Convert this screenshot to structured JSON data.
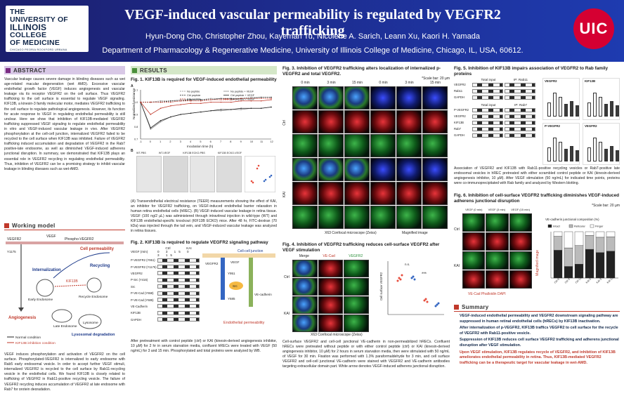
{
  "header": {
    "logo_line1": "THE",
    "logo_line2": "UNIVERSITY OF",
    "logo_line3": "ILLINOIS",
    "logo_line4": "COLLEGE",
    "logo_line5": "OF MEDICINE",
    "logo_line6": "CHICAGO  PEORIA  ROCKFORD  URBANA",
    "title": "VEGF-induced vascular permeability is regulated by VEGFR2 trafficking",
    "authors": "Hyun-Dong Cho, Christopher Zhou, Kayeman Tu, Nicolene A. Sarich, Leann Xu, Kaori H. Yamada",
    "affiliation": "Department of Pharmacology & Regenerative Medicine, University of Illinois College of Medicine, Chicago, IL, USA, 60612.",
    "right_logo": "UIC"
  },
  "abstract": {
    "heading": "ABSTRACT",
    "text": "Vascular leakage causes severe damage in blinding diseases such as wet age-related macular degeneration (wet AMD). Excessive vascular endothelial growth factor (VEGF) induces angiogenesis and vascular leakage via its receptor VEGFR2 on the cell surface. Thus VEGFR2 trafficking to the cell surface is essential to regulate VEGF signaling. KIF13B, a kinesin-3 family molecular motor, mediates VEGFR2 trafficking to the cell surface to regulate pathological angiogenesis. However, its function for acute response to VEGF in regulating endothelial permeability is still unclear. Here we show that inhibition of KIF13B-mediated VEGFR2 trafficking suppressed VEGF signaling to regulate endothelial permeability in vitro and VEGF-induced vascular leakage in vivo. After VEGFR2 phosphorylation at the cell-cell junction, internalized VEGFR2 failed to be recycled to the cell surface when KIF13B was inhibited. Failure of VEGFR2 trafficking induced accumulation and degradation of VEGFR2 in the Rab7 positive-late endosome, as well as diminished VEGF-induced adherens junctional disruption. In summary, we demonstrated that KIF13B plays an essential role in VEGFR2 recycling in regulating endothelial permeability. Thus, inhibition of VEGFR2 can be a promising strategy to inhibit vascular leakage in blinding diseases such as wet-AMD."
  },
  "working_model": {
    "heading": "Working model",
    "labels": {
      "vegf": "VEGF",
      "vegfr2": "VEGFR2",
      "phospho": "Phospho-VEGFR2",
      "y1175": "Y1175",
      "cell_perm": "Cell permeability",
      "internalization": "Internalization",
      "recycling": "Recycling",
      "early_endosome": "Early Endosome",
      "recycle_endosome": "Recycle Endosome",
      "angiogenesis": "Angiogenesis",
      "late_endosome": "Late Endosome",
      "lysosome": "Lysosome",
      "lysosomal_degradation": "Lysosomal degradation",
      "kif13b": "KIF13B",
      "legend_normal": "Normal condition",
      "legend_inhibition": "KIF13B inhibition condition"
    },
    "caption": "VEGF induces phosphorylation and activation of VEGFR2 on the cell surface. Phosphorylated-VEGFR2 is internalized to early endosome with Rab5 early endosomal vesicle. In order to accept further VEGF stimuli, internalized VEGFR2 is recycled to the cell surface by Rab11-recycling vesicle in the endothelial cells. We found KIF13B is closely related to trafficking of VEGFR2 in Rab11-positive recycling vesicle. The failure of VEGFR2 recycling induces accumulation of VEGFR2 at late endosome with Rab7 for protein degradation."
  },
  "results": {
    "heading": "RESULTS",
    "fig1_title": "Fig. 1. KIF13B is required for VEGF-induced endothelial permeability",
    "fig1_panel_a": "A",
    "fig1_panel_b": "B",
    "fig1_legend": [
      "No peptide",
      "Ctrl peptide",
      "KAI peptide",
      "No peptide + VEGF",
      "Ctrl peptide + VEGF",
      "KAI peptide + VEGF"
    ],
    "fig1_xlabel": "Incubation time (h)",
    "fig1_ylabel": "Normalized resistance",
    "fig1_b_labels": [
      "WT-PBS",
      "WT-VEGF",
      "KIF13B ECKO-PBS",
      "KIF13B ECKO-VEGF"
    ],
    "fig1_caption": "(A) Transendothelial electrical resistance (TEER) measurements showing the effect of KAI, an inhibitor for VEGFR2 trafficking, on VEGF-induced endothelial barrier relaxation in human retina endothelial cells (hREC). (B) VEGF-induced vascular leakage in retina tissue. VEGF (100 ng/2 µL) was administered through intravitreal injection in wild-type (WT) and KIF13B endothelial-specific knockout (KIF13B ECKO) mice. After 48 hr, FITC-dextran (70 kDa) was injected through the tail vein, and VEGF-induced vascular leakage was analyzed in retina tissues.",
    "fig2_title": "Fig. 2. KIF13B is required to regulate VEGFR2 signaling pathway",
    "fig2_header": "VEGF (min)",
    "fig2_groups": [
      "Ctrl",
      "KAI"
    ],
    "fig2_rows": [
      "P-VEGFR2 (Y951)",
      "P-VEGFR2 (Y1175)",
      "VEGFR2",
      "P-Src (Y416)",
      "Src",
      "P-VE-Cad (Y658)",
      "P-VE-Cad (Y685)",
      "VE-Cadherin",
      "KIF13B",
      "GAPDH"
    ],
    "fig2_labels": {
      "cell_junction": "Cell-cell junction",
      "endo_perm": "Endothelial permeability",
      "y951": "Y951",
      "y685": "Y685",
      "src": "Src",
      "vecad": "VE-cadherin",
      "vegfr2": "VEGFR2",
      "vegf": "VEGF"
    },
    "fig2_caption": "After pretreatment with control peptide (ctrl) or KAI (kinesin-derived angiogenesis inhibitor, 10 µM) for 2 hr in serum starvation media, confluent hRECs were treated with VEGF (50 ng/mL) for 3 and 15 min. Phosphorylated and total proteins were analyzed by WB."
  },
  "fig3": {
    "title": "Fig. 3. Inhibition of VEGFR2 trafficking alters localization of internalized p-VEGFR2 and total VEGFR2.",
    "scale_note": "*Scale bar: 20 µm",
    "col_labels": [
      "0 min",
      "3 min",
      "15 min",
      "0 min",
      "3 min",
      "15 min"
    ],
    "row_labels": [
      "Merge",
      "P-VEGFR2",
      "VEGFR2",
      "Merge",
      "P-VEGFR2",
      "VEGFR2"
    ],
    "group_labels": [
      "Ctrl",
      "KAI"
    ],
    "bottom_labels": [
      "X63 Confocal microscope (Zeiss)",
      "Magnified image"
    ]
  },
  "fig4": {
    "title": "Fig. 4. Inhibition of VEGFR2 trafficking reduces cell-surface VEGFR2 after VEGF stimulation",
    "col_labels": [
      "Merge",
      "VE-Cad",
      "VEGFR2"
    ],
    "groups": [
      "Ctrl",
      "KAI"
    ],
    "ylabel": "Cell surface VEGFR2",
    "ns": "n.s.",
    "stars": "***",
    "bottom_label": "X63 Confocal microscope (Zeiss)",
    "caption": "Cell-surface VEGFR2 and cell-cell junctional VE-cadherin in non-permeabilized hRECs. Confluent hRECs were pretreated without peptide or with either control peptide (ctrl) or KAI (kinesin-derived angiogenesis inhibitor, 10 µM) for 2 hours in serum starvation media, then were stimulated with 50 ng/mL of VEGF for 30 min. Fixation was performed with 1.3% paraformaldehyde for 3 min, and cell surface VEGFR2 and cell-cell junctional VE-cadherin were stained with VEGFR2 and VE-cadherin antibodies targeting extracellular domain part. White arrow denotes VEGF-induced adherens junctional disruption."
  },
  "fig5": {
    "title": "Fig. 5. Inhibition of KIF13B impairs association of VEGFR2 to Rab family proteins",
    "top_headers": [
      "Total input",
      "IP: Rab11"
    ],
    "bottom_headers": [
      "Total input",
      "IP: Rab7"
    ],
    "groups": [
      "Ctrl",
      "KAI"
    ],
    "time_label": "VEGF (min)",
    "top_rows": [
      "VEGFR2",
      "Rab11",
      "GAPDH"
    ],
    "bottom_rows": [
      "P-VEGFR2",
      "VEGFR2",
      "KIF13B",
      "Rab7",
      "GAPDH"
    ],
    "chart_labels": [
      "VEGFR2",
      "KIF13B",
      "P-VEGFR2",
      "VEGFR2"
    ],
    "caption": "Association of VEGFR2 and KIF13B with Rab11-positive recycling vesicles or Rab7-positive late endosomal vesicles in hREC pretreated with either scrambled control peptide or KAI (kinesin-derived angiogenesis inhibitor, 10 µM). After VEGF stimulation (50 ng/mL) for indicated time points, proteins were co-immunoprecipitated with Rab family and analyzed by Western blotting."
  },
  "fig6": {
    "title": "Fig. 6. Inhibition of cell-surface VEGFR2 trafficking diminishes VEGF-induced adherens junctional disruption",
    "scale_note": "*Scale bar: 20 µm",
    "col_labels": [
      "VEGF (0 min)",
      "VEGF (3 min)",
      "VEGF (15 min)"
    ],
    "groups": [
      "Ctrl",
      "KAI"
    ],
    "stain_label": "VE-Cad  Phalloidin  DAPI",
    "magnified": "Magnified image",
    "chart_title": "VE-cadherin junctional composition (%)",
    "chart_legend": [
      "Intact",
      "Reticular",
      "Finger"
    ],
    "chart_categories": [
      "Ctrl 0'",
      "Ctrl 3'",
      "Ctrl 15'",
      "KAI 0'",
      "KAI 3'",
      "KAI 15'"
    ]
  },
  "summary": {
    "heading": "Summary",
    "bullets": [
      "VEGF-induced endothelial permeability and VEGFR2 downstream signaling pathway are suppressed in human retinal endothelial cells (hRECs) by KIF13B inactivation.",
      "After internalization of p-VEGFR2, KIF13B traffics VEGFR2 to cell surface for the recycle of VEGFR2 with Rab11-positive vesicle.",
      "Suppression of KIF13B reduces cell surface VEGFR2 trafficking and adherens junctional disruption after VEGF stimulation.",
      "Upon VEGF stimulation, KIF13B regulates recycle of VEGFR2, and inhibition of KIF13B ameliorates endothelial permeability in retina. Thus, KIF13B-mediated VEGFR2 trafficking can be a therapeutic target for vascular leakage in wet-AMD."
    ]
  },
  "colors": {
    "header_bg": "#1d2a8a",
    "uic_red": "#d50032",
    "abstract_accent": "#7b2c83",
    "results_accent": "#4a8f3a",
    "summary_accent": "#c0392b"
  },
  "chart_data": [
    {
      "type": "line",
      "title": "",
      "xlabel": "Incubation time (h)",
      "ylabel": "Normalized resistance",
      "x": [
        -1,
        0,
        1,
        2,
        3,
        4,
        5,
        6,
        7,
        8,
        9,
        10,
        11,
        12
      ],
      "xlim": [
        -1,
        12
      ],
      "ylim": [
        0.7,
        1.1
      ],
      "series": [
        {
          "name": "No peptide",
          "values": [
            1.0,
            1.0,
            1.01,
            1.01,
            1.02,
            1.02,
            1.02,
            1.03,
            1.03,
            1.03,
            1.03,
            1.04,
            1.04,
            1.04
          ]
        },
        {
          "name": "Ctrl peptide",
          "values": [
            1.0,
            1.0,
            1.0,
            1.01,
            1.01,
            1.02,
            1.02,
            1.02,
            1.03,
            1.03,
            1.03,
            1.03,
            1.04,
            1.04
          ]
        },
        {
          "name": "KAI peptide",
          "values": [
            1.0,
            1.0,
            1.0,
            1.0,
            1.01,
            1.01,
            1.01,
            1.02,
            1.02,
            1.02,
            1.03,
            1.03,
            1.03,
            1.03
          ]
        },
        {
          "name": "No peptide + VEGF",
          "values": [
            1.0,
            0.78,
            0.84,
            0.88,
            0.9,
            0.91,
            0.92,
            0.93,
            0.93,
            0.94,
            0.94,
            0.95,
            0.95,
            0.96
          ]
        },
        {
          "name": "Ctrl peptide + VEGF",
          "values": [
            1.0,
            0.79,
            0.85,
            0.88,
            0.9,
            0.91,
            0.92,
            0.93,
            0.94,
            0.94,
            0.95,
            0.95,
            0.95,
            0.96
          ]
        },
        {
          "name": "KAI peptide + VEGF",
          "values": [
            1.0,
            0.9,
            0.95,
            0.97,
            0.98,
            0.99,
            0.99,
            1.0,
            1.0,
            1.0,
            1.01,
            1.01,
            1.01,
            1.02
          ]
        }
      ]
    },
    {
      "type": "stacked-bar",
      "title": "VE-cadherin junctional composition (%)",
      "categories": [
        "Ctrl 0'",
        "Ctrl 3'",
        "Ctrl 15'",
        "KAI 0'",
        "KAI 3'",
        "KAI 15'"
      ],
      "ylim": [
        0,
        100
      ],
      "series": [
        {
          "name": "Intact",
          "values": [
            60,
            25,
            30,
            62,
            55,
            58
          ]
        },
        {
          "name": "Reticular",
          "values": [
            30,
            40,
            40,
            30,
            33,
            31
          ]
        },
        {
          "name": "Finger",
          "values": [
            10,
            35,
            30,
            8,
            12,
            11
          ]
        }
      ]
    }
  ]
}
